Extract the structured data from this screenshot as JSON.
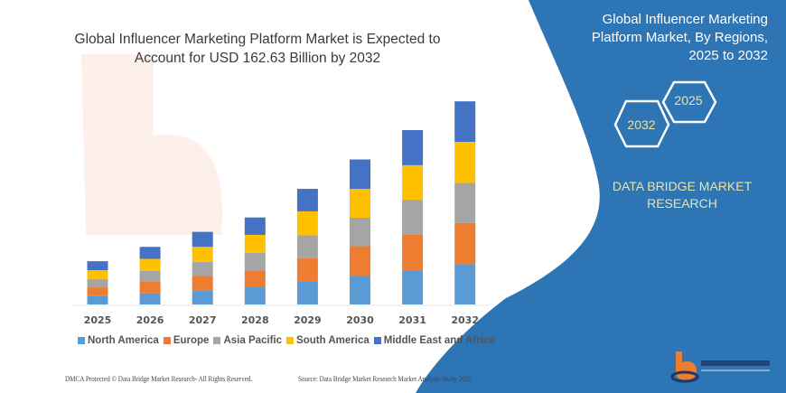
{
  "chart_data": {
    "type": "bar",
    "stacked": true,
    "title": "Global Influencer Marketing Platform Market is Expected to Account for USD 162.63 Billion by 2032",
    "categories": [
      "2025",
      "2026",
      "2027",
      "2028",
      "2029",
      "2030",
      "2031",
      "2032"
    ],
    "series": [
      {
        "name": "North America",
        "color": "#5b9bd5",
        "values": [
          7.0,
          8.9,
          11.3,
          13.7,
          18.5,
          22.8,
          27.4,
          32.2
        ]
      },
      {
        "name": "Europe",
        "color": "#ed7d31",
        "values": [
          6.7,
          9.6,
          11.5,
          13.7,
          18.5,
          23.8,
          28.3,
          33.1
        ]
      },
      {
        "name": "Asia Pacific",
        "color": "#a5a5a5",
        "values": [
          6.7,
          8.4,
          11.3,
          13.9,
          18.3,
          22.8,
          28.1,
          31.9
        ]
      },
      {
        "name": "South America",
        "color": "#ffc000",
        "values": [
          7.0,
          9.6,
          12.0,
          14.4,
          19.2,
          23.1,
          27.6,
          32.9
        ]
      },
      {
        "name": "Middle East and Africa",
        "color": "#4472c4",
        "values": [
          7.2,
          9.6,
          12.0,
          13.9,
          18.0,
          23.5,
          28.1,
          32.4
        ]
      }
    ],
    "xlabel": "",
    "ylabel": "",
    "ylim": [
      0,
      162.63
    ],
    "grid": false,
    "y_axis_shown": false,
    "legend_position": "bottom"
  },
  "sidebar": {
    "title_lines": [
      "Global Influencer Marketing",
      "Platform Market, By Regions,",
      "2025 to 2032"
    ],
    "hex_years": [
      "2025",
      "2032"
    ],
    "brand_lines": [
      "DATA BRIDGE MARKET",
      "RESEARCH"
    ],
    "background_color": "#2e75b6"
  },
  "logo": {
    "text": "DATA BRIDGE",
    "subtext": "MARKET RESEARCH"
  },
  "footer": {
    "copyright": "DMCA Protected © Data Bridge Market Research-  All Rights Reserved.",
    "source": "Source: Data Bridge Market Research  Market Analysis Study 2025"
  }
}
